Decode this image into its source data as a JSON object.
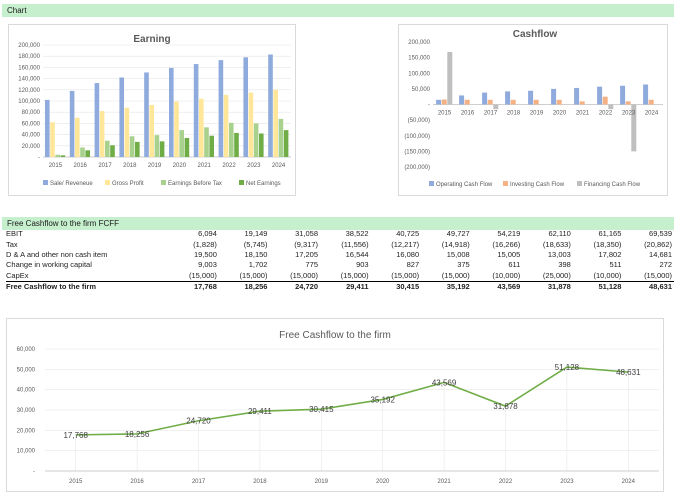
{
  "sheet": {
    "chart_header": "Chart",
    "table_header": "Free Cashflow to the firm FCFF"
  },
  "colors": {
    "header_green": "#c6efce",
    "sales": "#8faadc",
    "gross_profit": "#ffe699",
    "ebt": "#a9d18e",
    "net": "#70ad47",
    "operating_cf": "#8faadc",
    "investing_cf": "#f4b183",
    "financing_cf": "#bfbfbf",
    "fcff_line": "#70ad47"
  },
  "table": {
    "years": [
      "2015",
      "2016",
      "2017",
      "2018",
      "2019",
      "2020",
      "2021",
      "2022",
      "2023",
      "2024"
    ],
    "rows": [
      {
        "label": "EBIT",
        "values": [
          "6,094",
          "19,149",
          "31,058",
          "38,522",
          "40,725",
          "49,727",
          "54,219",
          "62,110",
          "61,165",
          "69,539"
        ]
      },
      {
        "label": "Tax",
        "values": [
          "(1,828)",
          "(5,745)",
          "(9,317)",
          "(11,556)",
          "(12,217)",
          "(14,918)",
          "(16,266)",
          "(18,633)",
          "(18,350)",
          "(20,862)"
        ]
      },
      {
        "label": "D & A and other non cash item",
        "values": [
          "19,500",
          "18,150",
          "17,205",
          "16,544",
          "16,080",
          "15,008",
          "15,005",
          "13,003",
          "17,802",
          "14,681"
        ]
      },
      {
        "label": "Change in working capital",
        "values": [
          "9,003",
          "1,702",
          "775",
          "903",
          "827",
          "375",
          "611",
          "398",
          "511",
          "272"
        ]
      },
      {
        "label": "CapEx",
        "values": [
          "(15,000)",
          "(15,000)",
          "(15,000)",
          "(15,000)",
          "(15,000)",
          "(15,000)",
          "(10,000)",
          "(25,000)",
          "(10,000)",
          "(15,000)"
        ]
      }
    ],
    "total": {
      "label": "Free Cashflow to the firm",
      "values": [
        "17,768",
        "18,256",
        "24,720",
        "29,411",
        "30,415",
        "35,192",
        "43,569",
        "31,878",
        "51,128",
        "48,631"
      ]
    }
  },
  "chart_data": [
    {
      "type": "bar",
      "title": "Earning",
      "categories": [
        "2015",
        "2016",
        "2017",
        "2018",
        "2019",
        "2020",
        "2021",
        "2022",
        "2023",
        "2024"
      ],
      "ylim": [
        0,
        200000
      ],
      "yticks": [
        "-",
        "20,000",
        "40,000",
        "60,000",
        "80,000",
        "100,000",
        "120,000",
        "140,000",
        "160,000",
        "180,000",
        "200,000"
      ],
      "grid": true,
      "legend_position": "bottom",
      "series": [
        {
          "name": "Sale/ Reveneue",
          "values": [
            102000,
            118000,
            132000,
            142000,
            151000,
            159000,
            166000,
            173000,
            178000,
            183000
          ]
        },
        {
          "name": "Gross Profit",
          "values": [
            62000,
            70000,
            82000,
            88000,
            93000,
            99000,
            104000,
            111000,
            115000,
            120000
          ]
        },
        {
          "name": "Earnings Before Tax",
          "values": [
            4000,
            17000,
            29000,
            37000,
            39000,
            48000,
            53000,
            61000,
            60000,
            68000
          ]
        },
        {
          "name": "Net Earnings",
          "values": [
            3000,
            12000,
            21000,
            27000,
            28000,
            34000,
            38000,
            43000,
            42000,
            48000
          ]
        }
      ]
    },
    {
      "type": "bar",
      "title": "Cashflow",
      "categories": [
        "2015",
        "2016",
        "2017",
        "2018",
        "2019",
        "2020",
        "2021",
        "2022",
        "2023",
        "2024"
      ],
      "ylim": [
        -200000,
        200000
      ],
      "yticks": [
        "(200,000)",
        "(150,000)",
        "(100,000)",
        "(50,000)",
        "-",
        "50,000",
        "100,000",
        "150,000",
        "200,000"
      ],
      "grid": false,
      "legend_position": "bottom",
      "series": [
        {
          "name": "Operating Cash Flow",
          "values": [
            15000,
            29000,
            38000,
            42000,
            44000,
            50000,
            53000,
            57000,
            60000,
            64000
          ]
        },
        {
          "name": "Investing Cash Flow",
          "values": [
            16000,
            15000,
            15000,
            15000,
            15000,
            15000,
            10000,
            25000,
            10000,
            15000
          ]
        },
        {
          "name": "Financing Cash Flow",
          "values": [
            168000,
            0,
            -15000,
            0,
            0,
            0,
            0,
            -15000,
            -150000,
            0
          ]
        }
      ]
    },
    {
      "type": "line",
      "title": "Free Cashflow to the firm",
      "categories": [
        "2015",
        "2016",
        "2017",
        "2018",
        "2019",
        "2020",
        "2021",
        "2022",
        "2023",
        "2024"
      ],
      "ylim": [
        0,
        60000
      ],
      "yticks": [
        "-",
        "10,000",
        "20,000",
        "30,000",
        "40,000",
        "50,000",
        "60,000"
      ],
      "grid": true,
      "series": [
        {
          "values": [
            17768,
            18256,
            24720,
            29411,
            30415,
            35192,
            43569,
            31878,
            51128,
            48631
          ],
          "labels": [
            "17,768",
            "18,256",
            "24,720",
            "29,411",
            "30,415",
            "35,192",
            "43,569",
            "31,878",
            "51,128",
            "48,631"
          ]
        }
      ]
    }
  ]
}
